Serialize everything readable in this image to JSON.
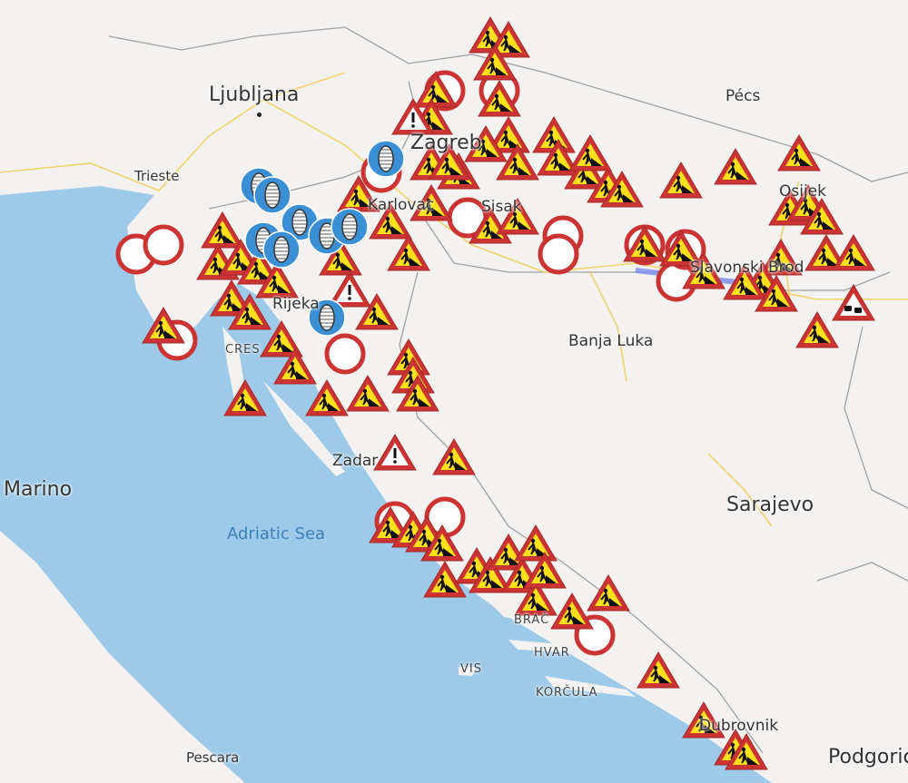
{
  "map": {
    "colors": {
      "land": "#f3f2f0",
      "sea": "#9ecae9",
      "border": "#9a9a9a",
      "road": "#f1d36a",
      "work_fill": "#ffe01a",
      "sign_red": "#cc3333",
      "tyre_blue": "#3b8fd4"
    },
    "labels": {
      "ljubljana": "Ljubljana",
      "pecs": "Pécs",
      "trieste": "Trieste",
      "zagreb": "Zagreb",
      "karlovac": "Karlovac",
      "sisak": "Sisak",
      "osijek": "Osijek",
      "brod": "Slavonski Brod",
      "banja_luka": "Banja Luka",
      "cres": "CRES",
      "rijeka": "Rijeka",
      "zadar": "Zadar",
      "marino": "Marino",
      "adriatic": "Adriatic Sea",
      "sarajevo": "Sarajevo",
      "brac": "BRAČ",
      "hvar": "HVAR",
      "vis": "VIS",
      "korcula": "KORČULA",
      "dubrovnik": "Dubrovnik",
      "pescara": "Pescara",
      "podgorica": "Podgorica"
    },
    "marker_types": {
      "work": "road-works-icon",
      "closed": "road-closed-icon",
      "tyre": "winter-tyres-icon",
      "warn": "danger-warning-icon",
      "jam": "traffic-jam-icon"
    }
  }
}
